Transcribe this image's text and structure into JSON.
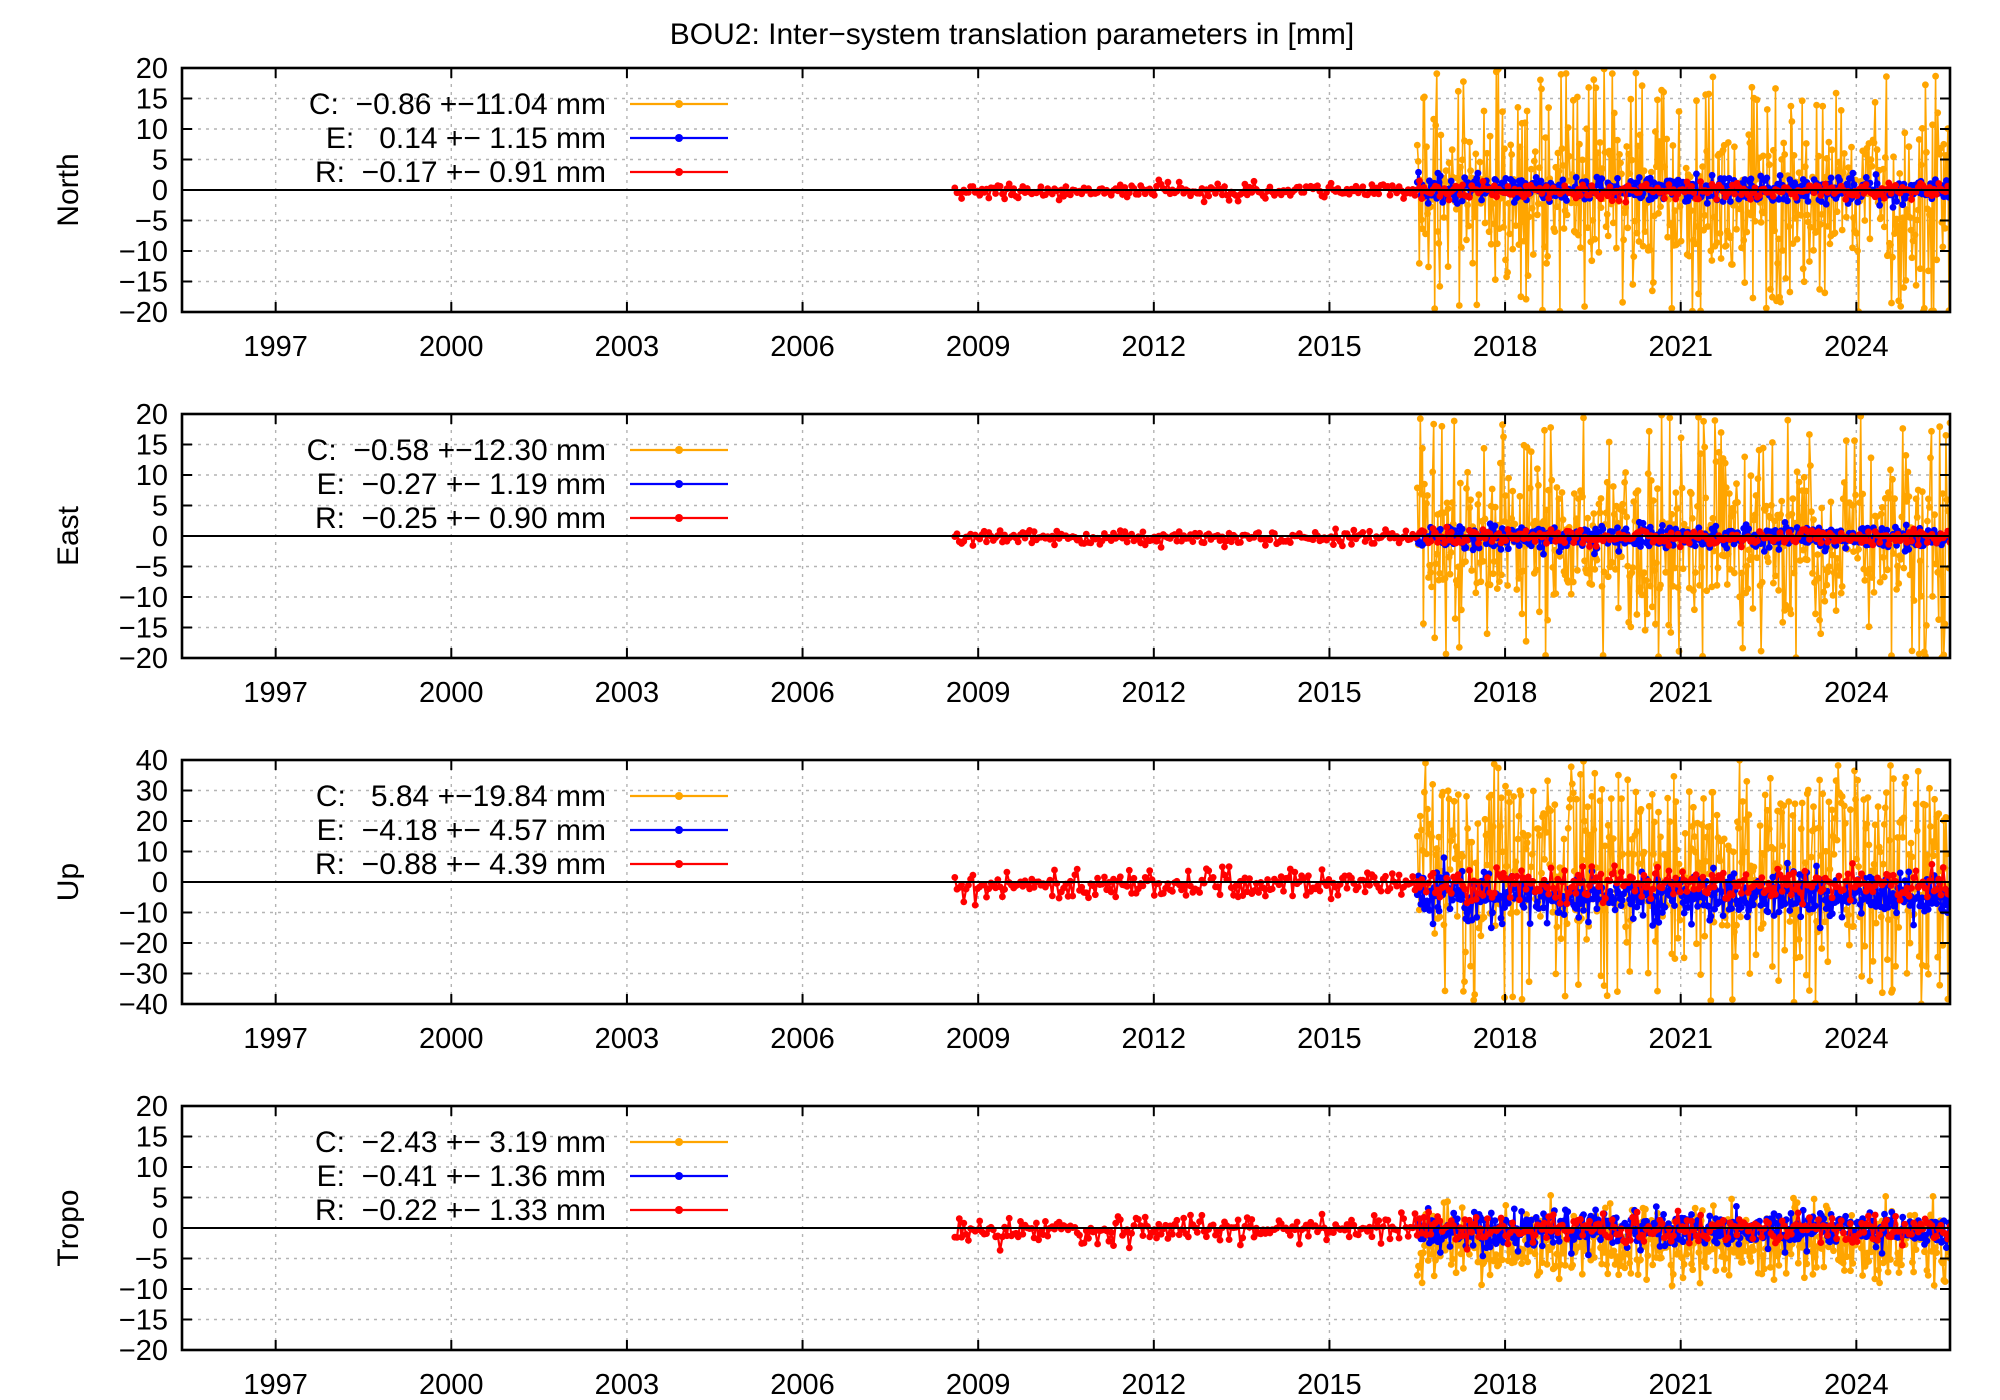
{
  "title": "BOU2: Inter−system translation parameters in [mm]",
  "colors": {
    "C": "#ffa500",
    "E": "#0000ff",
    "R": "#ff0000",
    "grid": "#b4b4b4",
    "axis": "#000000"
  },
  "chart_data": [
    {
      "type": "scatter",
      "ylabel": "North",
      "xlim": [
        1995.4,
        2025.6
      ],
      "ylim": [
        -20,
        20
      ],
      "xticks": [
        1997,
        2000,
        2003,
        2006,
        2009,
        2012,
        2015,
        2018,
        2021,
        2024
      ],
      "yticks": [
        -20,
        -15,
        -10,
        -5,
        0,
        5,
        10,
        15,
        20
      ],
      "grid": true,
      "legend_position": "top-left",
      "series": [
        {
          "key": "C",
          "legend": "C:  −0.86 +−11.04 mm",
          "mean": -0.86,
          "rms": 11.04,
          "x_range": [
            2016.5,
            2025.6
          ],
          "outlier_span": [
            -20,
            20
          ],
          "bulk_range": [
            -10,
            8
          ]
        },
        {
          "key": "E",
          "legend": "E:   0.14 +− 1.15 mm",
          "mean": 0.14,
          "rms": 1.15,
          "x_range": [
            2016.5,
            2025.6
          ],
          "band": [
            -3,
            4
          ]
        },
        {
          "key": "R",
          "legend": "R:  −0.17 +− 0.91 mm",
          "mean": -0.17,
          "rms": 0.91,
          "x_range": [
            2008.6,
            2025.6
          ],
          "band": [
            -2,
            2
          ]
        }
      ]
    },
    {
      "type": "scatter",
      "ylabel": "East",
      "xlim": [
        1995.4,
        2025.6
      ],
      "ylim": [
        -20,
        20
      ],
      "xticks": [
        1997,
        2000,
        2003,
        2006,
        2009,
        2012,
        2015,
        2018,
        2021,
        2024
      ],
      "yticks": [
        -20,
        -15,
        -10,
        -5,
        0,
        5,
        10,
        15,
        20
      ],
      "grid": true,
      "legend_position": "top-left",
      "series": [
        {
          "key": "C",
          "legend": "C:  −0.58 +−12.30 mm",
          "mean": -0.58,
          "rms": 12.3,
          "x_range": [
            2016.5,
            2025.6
          ],
          "outlier_span": [
            -20,
            20
          ],
          "bulk_range": [
            -10,
            8
          ]
        },
        {
          "key": "E",
          "legend": "E:  −0.27 +− 1.19 mm",
          "mean": -0.27,
          "rms": 1.19,
          "x_range": [
            2016.5,
            2025.6
          ],
          "band": [
            -3,
            3
          ]
        },
        {
          "key": "R",
          "legend": "R:  −0.25 +− 0.90 mm",
          "mean": -0.25,
          "rms": 0.9,
          "x_range": [
            2008.6,
            2025.6
          ],
          "band": [
            -2,
            2
          ]
        }
      ]
    },
    {
      "type": "scatter",
      "ylabel": "Up",
      "xlim": [
        1995.4,
        2025.6
      ],
      "ylim": [
        -40,
        40
      ],
      "xticks": [
        1997,
        2000,
        2003,
        2006,
        2009,
        2012,
        2015,
        2018,
        2021,
        2024
      ],
      "yticks": [
        -40,
        -30,
        -20,
        -10,
        0,
        10,
        20,
        30,
        40
      ],
      "grid": true,
      "legend_position": "top-left",
      "series": [
        {
          "key": "C",
          "legend": "C:   5.84 +−19.84 mm",
          "mean": 5.84,
          "rms": 19.84,
          "x_range": [
            2016.5,
            2025.6
          ],
          "outlier_span": [
            -40,
            40
          ],
          "bulk_range": [
            -15,
            30
          ]
        },
        {
          "key": "E",
          "legend": "E:  −4.18 +− 4.57 mm",
          "mean": -4.18,
          "rms": 4.57,
          "x_range": [
            2016.5,
            2025.6
          ],
          "band": [
            -15,
            8
          ]
        },
        {
          "key": "R",
          "legend": "R:  −0.88 +− 4.39 mm",
          "mean": -0.88,
          "rms": 4.39,
          "x_range": [
            2008.6,
            2025.6
          ],
          "band": [
            -8,
            8
          ]
        }
      ]
    },
    {
      "type": "scatter",
      "ylabel": "Tropo",
      "xlim": [
        1995.4,
        2025.6
      ],
      "ylim": [
        -20,
        20
      ],
      "xticks": [
        1997,
        2000,
        2003,
        2006,
        2009,
        2012,
        2015,
        2018,
        2021,
        2024
      ],
      "yticks": [
        -20,
        -15,
        -10,
        -5,
        0,
        5,
        10,
        15,
        20
      ],
      "grid": true,
      "legend_position": "top-left",
      "series": [
        {
          "key": "C",
          "legend": "C:  −2.43 +− 3.19 mm",
          "mean": -2.43,
          "rms": 3.19,
          "x_range": [
            2016.5,
            2025.6
          ],
          "band": [
            -10,
            8
          ]
        },
        {
          "key": "E",
          "legend": "E:  −0.41 +− 1.36 mm",
          "mean": -0.41,
          "rms": 1.36,
          "x_range": [
            2016.5,
            2025.6
          ],
          "band": [
            -5,
            4
          ]
        },
        {
          "key": "R",
          "legend": "R:  −0.22 +− 1.33 mm",
          "mean": -0.22,
          "rms": 1.33,
          "x_range": [
            2008.6,
            2025.6
          ],
          "band": [
            -4,
            3
          ]
        }
      ]
    }
  ]
}
